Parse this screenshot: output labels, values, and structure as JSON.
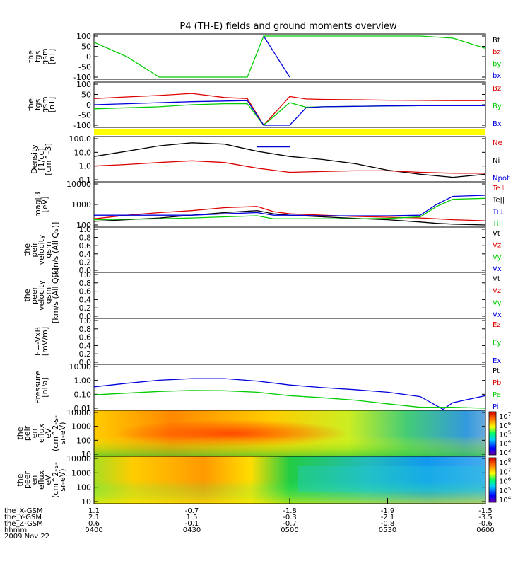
{
  "title": "P4 (TH-E) fields and ground moments overview",
  "colors": {
    "black": "#000000",
    "red": "#dd0000",
    "green": "#00cc00",
    "blue": "#0000dd",
    "yellow_bar": "#ffff00"
  },
  "time_axis": {
    "rows": [
      {
        "label": "the_X-GSM",
        "values": [
          "1.1",
          "-0.7",
          "-1.8",
          "-1.9",
          "-1.5"
        ]
      },
      {
        "label": "the_Y-GSM",
        "values": [
          "2.1",
          "1.5",
          "-0.3",
          "-2.1",
          "-3.5"
        ]
      },
      {
        "label": "the_Z-GSM",
        "values": [
          "0.6",
          "-0.1",
          "-0.7",
          "-0.8",
          "-0.6"
        ]
      },
      {
        "label": "hhmm",
        "values": [
          "0400",
          "0430",
          "0500",
          "0530",
          "0600"
        ]
      }
    ],
    "date": "2009 Nov 22"
  },
  "panels": [
    {
      "ylabel": [
        "the",
        "fgs",
        "gsm",
        "[nT]"
      ],
      "ticks": [
        "100",
        "50",
        "0",
        "-50",
        "-100"
      ],
      "legend": [
        {
          "text": "Bt",
          "color": "black"
        },
        {
          "text": "bz",
          "color": "red"
        },
        {
          "text": "by",
          "color": "green"
        },
        {
          "text": "bx",
          "color": "blue"
        }
      ]
    },
    {
      "ylabel": [
        "the",
        "fgs",
        "gsm",
        "[nT]"
      ],
      "ticks": [
        "100",
        "50",
        "0",
        "-50",
        "-100"
      ],
      "legend": [
        {
          "text": "Bz",
          "color": "red"
        },
        {
          "text": "By",
          "color": "green"
        },
        {
          "text": "Bx",
          "color": "blue"
        }
      ]
    },
    {
      "ylabel": [
        "Density",
        "[1/cc]",
        "[cm^-3]"
      ],
      "ticks": [
        "100.0",
        "10.0",
        "1.0",
        "0.1"
      ],
      "legend": [
        {
          "text": "Ne",
          "color": "red"
        },
        {
          "text": "Ni",
          "color": "black"
        },
        {
          "text": "Npot",
          "color": "blue"
        }
      ]
    },
    {
      "ylabel": [
        "mag[3",
        "[eV]"
      ],
      "ticks": [
        "10000",
        "1000",
        "100"
      ],
      "legend": [
        {
          "text": "Te⊥",
          "color": "red"
        },
        {
          "text": "Te||",
          "color": "black"
        },
        {
          "text": "Ti⊥",
          "color": "blue"
        },
        {
          "text": "Ti||",
          "color": "green"
        }
      ]
    },
    {
      "ylabel": [
        "the",
        "peir",
        "velocity",
        "gsm",
        "[km/s (All Qs)]"
      ],
      "ticks": [
        "1.0",
        "0.8",
        "0.6",
        "0.4",
        "0.2",
        "0.0"
      ],
      "legend": [
        {
          "text": "Vt",
          "color": "black"
        },
        {
          "text": "Vz",
          "color": "red"
        },
        {
          "text": "Vy",
          "color": "green"
        },
        {
          "text": "Vx",
          "color": "blue"
        }
      ]
    },
    {
      "ylabel": [
        "the",
        "peer",
        "velocity",
        "gsm",
        "[km/s (All Qs)]"
      ],
      "ticks": [
        "1.0",
        "0.8",
        "0.6",
        "0.4",
        "0.2",
        "0.0"
      ],
      "legend": [
        {
          "text": "Vt",
          "color": "black"
        },
        {
          "text": "Vz",
          "color": "red"
        },
        {
          "text": "Vy",
          "color": "green"
        },
        {
          "text": "Vx",
          "color": "blue"
        }
      ]
    },
    {
      "ylabel": [
        "E=-VxB",
        "[mV/m]"
      ],
      "ticks": [
        "1.0",
        "0.8",
        "0.6",
        "0.4",
        "0.2",
        "0.0"
      ],
      "legend": [
        {
          "text": "Ez",
          "color": "red"
        },
        {
          "text": "Ey",
          "color": "green"
        },
        {
          "text": "Ex",
          "color": "blue"
        }
      ]
    },
    {
      "ylabel": [
        "Pressure",
        "[nPa]"
      ],
      "ticks": [
        "10.00",
        "1.00",
        "0.10",
        "0.01"
      ],
      "legend": [
        {
          "text": "Pt",
          "color": "black"
        },
        {
          "text": "Pb",
          "color": "red"
        },
        {
          "text": "Pe",
          "color": "green"
        },
        {
          "text": "Pi",
          "color": "blue"
        }
      ]
    },
    {
      "ylabel": [
        "the",
        "peir",
        "en",
        "eflux",
        "eV",
        "(cm^2-s-",
        "sr-eV)"
      ],
      "ticks": [
        "10000",
        "1000",
        "100",
        "10"
      ],
      "colorbar": [
        "10^7",
        "10^6",
        "10^5",
        "10^4",
        "10^3"
      ]
    },
    {
      "ylabel": [
        "the",
        "peer",
        "en",
        "eflux",
        "eV",
        "(cm^2-s-",
        "sr-eV)"
      ],
      "ticks": [
        "10000",
        "1000",
        "100",
        "10"
      ],
      "colorbar": [
        "10^8",
        "10^7",
        "10^6",
        "10^5",
        "10^4"
      ]
    }
  ],
  "chart_data": [
    {
      "type": "line",
      "title": "the fgs gsm [nT]",
      "ylim": [
        -100,
        100
      ],
      "x": [
        "0400",
        "0410",
        "0420",
        "0430",
        "0440",
        "0447",
        "0452",
        "0500",
        "0510",
        "0520",
        "0530",
        "0540",
        "0550",
        "0600"
      ],
      "series": [
        {
          "name": "by",
          "values": [
            70,
            0,
            -100,
            -100,
            -100,
            -100,
            100,
            100,
            100,
            100,
            100,
            100,
            90,
            40
          ]
        },
        {
          "name": "bx",
          "values": [
            null,
            null,
            null,
            null,
            null,
            null,
            100,
            -100,
            null,
            null,
            null,
            null,
            null,
            null
          ]
        }
      ]
    },
    {
      "type": "line",
      "title": "the fgs gsm [nT]",
      "ylim": [
        -100,
        100
      ],
      "x": [
        "0400",
        "0410",
        "0420",
        "0430",
        "0440",
        "0447",
        "0452",
        "0500",
        "0505",
        "0510",
        "0520",
        "0530",
        "0540",
        "0550",
        "0600"
      ],
      "series": [
        {
          "name": "Bz",
          "values": [
            30,
            38,
            45,
            55,
            35,
            30,
            -100,
            40,
            28,
            26,
            24,
            22,
            21,
            20,
            20
          ]
        },
        {
          "name": "By",
          "values": [
            -20,
            -15,
            -10,
            0,
            5,
            5,
            -100,
            10,
            -12,
            -10,
            -8,
            -6,
            -5,
            -5,
            -5
          ]
        },
        {
          "name": "Bx",
          "values": [
            0,
            5,
            10,
            15,
            18,
            20,
            -100,
            -100,
            -15,
            -10,
            -8,
            -6,
            -5,
            -5,
            -5
          ]
        }
      ]
    },
    {
      "type": "line",
      "title": "Density",
      "ylim": [
        0.1,
        100
      ],
      "yscale": "log",
      "x": [
        "0400",
        "0410",
        "0420",
        "0430",
        "0440",
        "0450",
        "0500",
        "0510",
        "0520",
        "0530",
        "0540",
        "0550",
        "0600"
      ],
      "series": [
        {
          "name": "Ni",
          "values": [
            5,
            12,
            30,
            50,
            40,
            12,
            5,
            3,
            1.5,
            0.5,
            0.25,
            0.15,
            0.25
          ]
        },
        {
          "name": "Ne",
          "values": [
            1.0,
            1.3,
            1.8,
            2.4,
            1.8,
            0.7,
            0.35,
            0.4,
            0.45,
            0.45,
            0.35,
            0.3,
            0.3
          ]
        },
        {
          "name": "Npot",
          "values": [
            null,
            null,
            null,
            null,
            null,
            25,
            25,
            null,
            null,
            null,
            null,
            null,
            null
          ]
        }
      ]
    },
    {
      "type": "line",
      "title": "mag[3 [eV]",
      "ylim": [
        100,
        10000
      ],
      "yscale": "log",
      "x": [
        "0400",
        "0410",
        "0420",
        "0430",
        "0440",
        "0450",
        "0455",
        "0500",
        "0510",
        "0520",
        "0530",
        "0540",
        "0545",
        "0550",
        "0600"
      ],
      "series": [
        {
          "name": "Te⊥",
          "values": [
            200,
            300,
            400,
            500,
            700,
            800,
            450,
            350,
            300,
            260,
            240,
            220,
            200,
            180,
            160
          ]
        },
        {
          "name": "Te||",
          "values": [
            150,
            180,
            220,
            300,
            400,
            500,
            350,
            300,
            250,
            210,
            180,
            140,
            120,
            110,
            100
          ]
        },
        {
          "name": "Ti⊥",
          "values": [
            300,
            300,
            300,
            300,
            350,
            400,
            300,
            300,
            280,
            280,
            280,
            300,
            1000,
            2500,
            2800
          ]
        },
        {
          "name": "Ti||",
          "values": [
            180,
            190,
            200,
            220,
            250,
            280,
            200,
            200,
            200,
            200,
            210,
            250,
            800,
            1800,
            2000
          ]
        }
      ]
    },
    {
      "type": "line",
      "title": "the peir velocity gsm",
      "ylim": [
        0,
        1
      ],
      "series": []
    },
    {
      "type": "line",
      "title": "the peer velocity gsm",
      "ylim": [
        0,
        1
      ],
      "series": []
    },
    {
      "type": "line",
      "title": "E=-VxB [mV/m]",
      "ylim": [
        0,
        1
      ],
      "series": []
    },
    {
      "type": "line",
      "title": "Pressure [nPa]",
      "ylim": [
        0.005,
        20
      ],
      "yscale": "log",
      "x": [
        "0400",
        "0410",
        "0420",
        "0430",
        "0440",
        "0450",
        "0500",
        "0510",
        "0520",
        "0530",
        "0540",
        "0547",
        "0550",
        "0600"
      ],
      "series": [
        {
          "name": "Pi",
          "values": [
            0.35,
            0.7,
            1.3,
            1.8,
            1.8,
            1.1,
            0.5,
            0.3,
            0.2,
            0.12,
            0.05,
            0.004,
            0.015,
            0.06
          ]
        },
        {
          "name": "Pe",
          "values": [
            0.07,
            0.1,
            0.14,
            0.17,
            0.16,
            0.12,
            0.06,
            0.04,
            0.025,
            0.012,
            0.006,
            0.006,
            0.006,
            0.005
          ]
        }
      ]
    },
    {
      "type": "heatmap",
      "title": "the peir en eflux",
      "ylim": [
        10,
        10000
      ],
      "yscale": "log"
    },
    {
      "type": "heatmap",
      "title": "the peer en eflux",
      "ylim": [
        10,
        10000
      ],
      "yscale": "log"
    }
  ]
}
